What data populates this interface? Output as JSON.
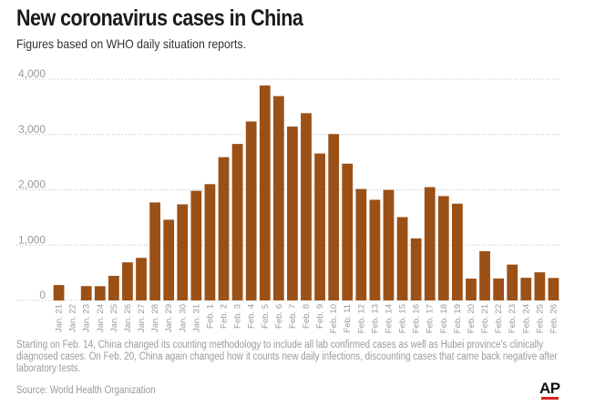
{
  "title": "New coronavirus cases in China",
  "subtitle": "Figures based on WHO daily situation reports.",
  "note": "Starting on Feb. 14, China changed its counting methodology to include all lab confirmed cases as well as Hubei province's clinically diagnosed cases. On Feb. 20, China again changed how it counts new daily infections, discounting cases that came back negative after laboratory tests.",
  "source": "Source: World Health Organization",
  "logo": "AP",
  "colors": {
    "bar": "#9b5016",
    "grid": "#cccccc",
    "logo_accent": "#d8231f"
  },
  "chart_data": {
    "type": "bar",
    "title": "New coronavirus cases in China",
    "subtitle": "Figures based on WHO daily situation reports.",
    "categories": [
      "Jan. 21",
      "Jan. 22",
      "Jan. 23",
      "Jan. 24",
      "Jan. 25",
      "Jan. 26",
      "Jan. 27",
      "Jan. 28",
      "Jan. 29",
      "Jan. 30",
      "Jan. 31",
      "Feb. 1",
      "Feb. 2",
      "Feb. 3",
      "Feb. 4",
      "Feb. 5",
      "Feb. 6",
      "Feb. 7",
      "Feb. 8",
      "Feb. 9",
      "Feb. 10",
      "Feb. 11",
      "Feb. 12",
      "Feb. 13",
      "Feb. 14",
      "Feb. 15",
      "Feb. 16",
      "Feb. 17",
      "Feb. 18",
      "Feb. 19",
      "Feb. 20",
      "Feb. 21",
      "Feb. 22",
      "Feb. 23",
      "Feb. 24",
      "Feb. 25",
      "Feb. 26"
    ],
    "values": [
      278,
      0,
      259,
      257,
      444,
      688,
      769,
      1771,
      1459,
      1737,
      1982,
      2102,
      2590,
      2829,
      3235,
      3887,
      3694,
      3143,
      3385,
      2657,
      3008,
      2473,
      2015,
      1820,
      1998,
      1506,
      1121,
      2048,
      1886,
      1749,
      394,
      889,
      397,
      648,
      409,
      508,
      406
    ],
    "yticks": [
      0,
      1000,
      2000,
      3000,
      4000
    ],
    "ytick_labels": [
      "0",
      "1,000",
      "2,000",
      "3,000",
      "4,000"
    ],
    "ylim": [
      0,
      4000
    ],
    "grid": true,
    "legend": "none"
  }
}
